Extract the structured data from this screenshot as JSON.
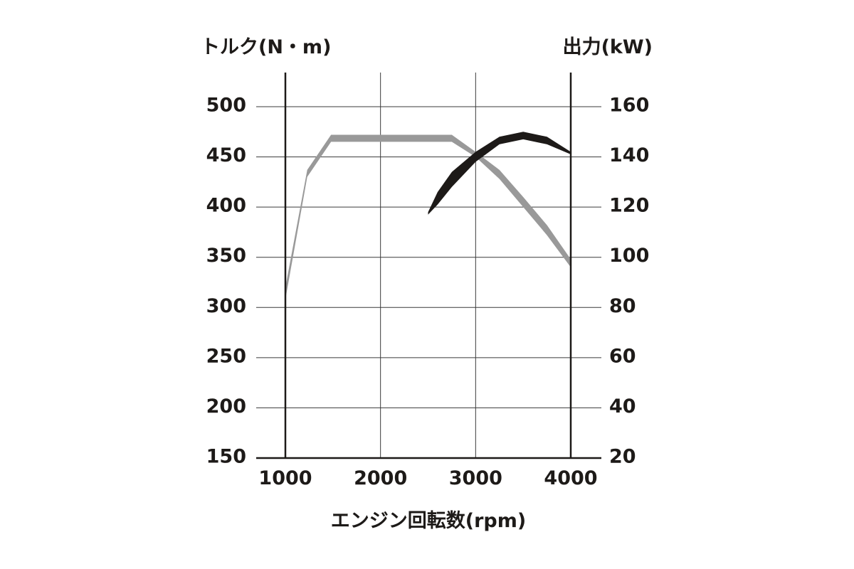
{
  "chart_data": {
    "type": "line",
    "y_left_title": "トルク(N・m)",
    "y_right_title": "出力(kW)",
    "xlabel": "エンジン回転数(rpm)",
    "x_ticks": [
      1000,
      2000,
      3000,
      4000
    ],
    "xlim": [
      1000,
      4000
    ],
    "y_left_ticks": [
      150,
      200,
      250,
      300,
      350,
      400,
      450,
      500
    ],
    "y_left_lim": [
      150,
      500
    ],
    "y_right_ticks": [
      20,
      40,
      60,
      80,
      100,
      120,
      140,
      160
    ],
    "y_right_lim": [
      20,
      160
    ],
    "grid": true,
    "colors": {
      "torque": "#999999",
      "power": "#1d1a18"
    },
    "series": [
      {
        "axis": "left",
        "upper": [
          [
            1000,
            320
          ],
          [
            1230,
            437
          ],
          [
            1480,
            472
          ],
          [
            2750,
            472
          ],
          [
            3000,
            455
          ],
          [
            3250,
            437
          ],
          [
            3500,
            410
          ],
          [
            3750,
            382
          ],
          [
            4000,
            348
          ]
        ],
        "lower": [
          [
            4000,
            340
          ],
          [
            3750,
            372
          ],
          [
            3500,
            400
          ],
          [
            3250,
            428
          ],
          [
            3000,
            450
          ],
          [
            2750,
            465
          ],
          [
            1480,
            465
          ],
          [
            1230,
            430
          ],
          [
            1000,
            308
          ]
        ]
      },
      {
        "axis": "right",
        "upper": [
          [
            2500,
            118
          ],
          [
            2600,
            126
          ],
          [
            2750,
            134
          ],
          [
            3000,
            142
          ],
          [
            3250,
            148
          ],
          [
            3500,
            150
          ],
          [
            3750,
            148
          ],
          [
            4000,
            142
          ]
        ],
        "lower": [
          [
            4000,
            141
          ],
          [
            3750,
            145
          ],
          [
            3500,
            147
          ],
          [
            3250,
            145
          ],
          [
            3000,
            138
          ],
          [
            2750,
            128
          ],
          [
            2600,
            121
          ],
          [
            2500,
            117
          ]
        ]
      }
    ]
  }
}
